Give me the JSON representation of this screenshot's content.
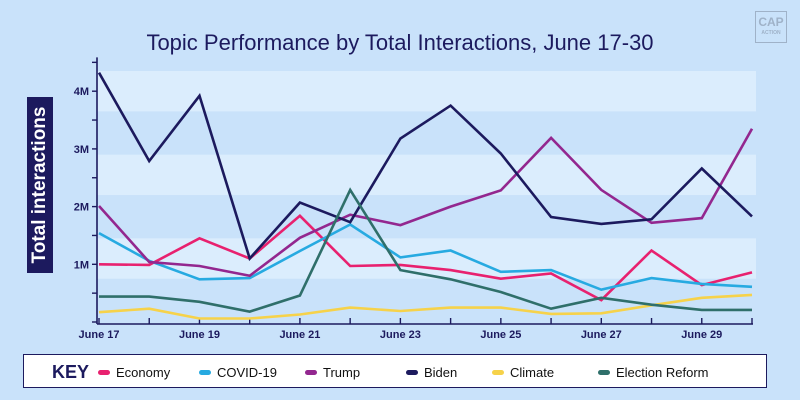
{
  "logo": {
    "line1": "CAP",
    "line2": "ACTION"
  },
  "legend": {
    "title": "KEY"
  },
  "chart_data": {
    "type": "line",
    "title": "Topic Performance by Total Interactions, June 17-30",
    "xlabel": "",
    "ylabel": "Total interactions",
    "x": [
      "June 17",
      "June 18",
      "June 19",
      "June 20",
      "June 21",
      "June 22",
      "June 23",
      "June 24",
      "June 25",
      "June 26",
      "June 27",
      "June 28",
      "June 29",
      "June 30"
    ],
    "x_tick_labels": [
      "June 17",
      "June 19",
      "June 21",
      "June 23",
      "June 25",
      "June 27",
      "June 29"
    ],
    "y_tick_labels": [
      "1M",
      "2M",
      "3M",
      "4M"
    ],
    "y_ticks": [
      1000000,
      2000000,
      3000000,
      4000000
    ],
    "ylim": [
      0,
      4500000
    ],
    "grid": "alternating horizontal bands",
    "legend_position": "bottom",
    "series": [
      {
        "name": "Economy",
        "color": "#e8216f",
        "values": [
          1000000,
          990000,
          1450000,
          1100000,
          1840000,
          970000,
          990000,
          900000,
          750000,
          840000,
          380000,
          1240000,
          640000,
          860000
        ]
      },
      {
        "name": "COVID-19",
        "color": "#27aae1",
        "values": [
          1540000,
          1060000,
          740000,
          760000,
          1230000,
          1690000,
          1120000,
          1240000,
          870000,
          900000,
          560000,
          760000,
          660000,
          610000
        ]
      },
      {
        "name": "Trump",
        "color": "#93278f",
        "values": [
          2010000,
          1040000,
          970000,
          800000,
          1460000,
          1860000,
          1680000,
          2000000,
          2280000,
          3190000,
          2290000,
          1720000,
          1800000,
          3350000
        ]
      },
      {
        "name": "Biden",
        "color": "#1c1a5e",
        "values": [
          4320000,
          2790000,
          3920000,
          1100000,
          2070000,
          1730000,
          3180000,
          3750000,
          2920000,
          1820000,
          1700000,
          1780000,
          2660000,
          1830000
        ]
      },
      {
        "name": "Climate",
        "color": "#f6d24a",
        "values": [
          170000,
          230000,
          60000,
          60000,
          130000,
          250000,
          190000,
          250000,
          250000,
          140000,
          150000,
          290000,
          420000,
          470000
        ]
      },
      {
        "name": "Election Reform",
        "color": "#2f6f6a",
        "values": [
          440000,
          440000,
          350000,
          180000,
          460000,
          2290000,
          900000,
          740000,
          520000,
          230000,
          420000,
          300000,
          210000,
          210000
        ]
      }
    ]
  }
}
